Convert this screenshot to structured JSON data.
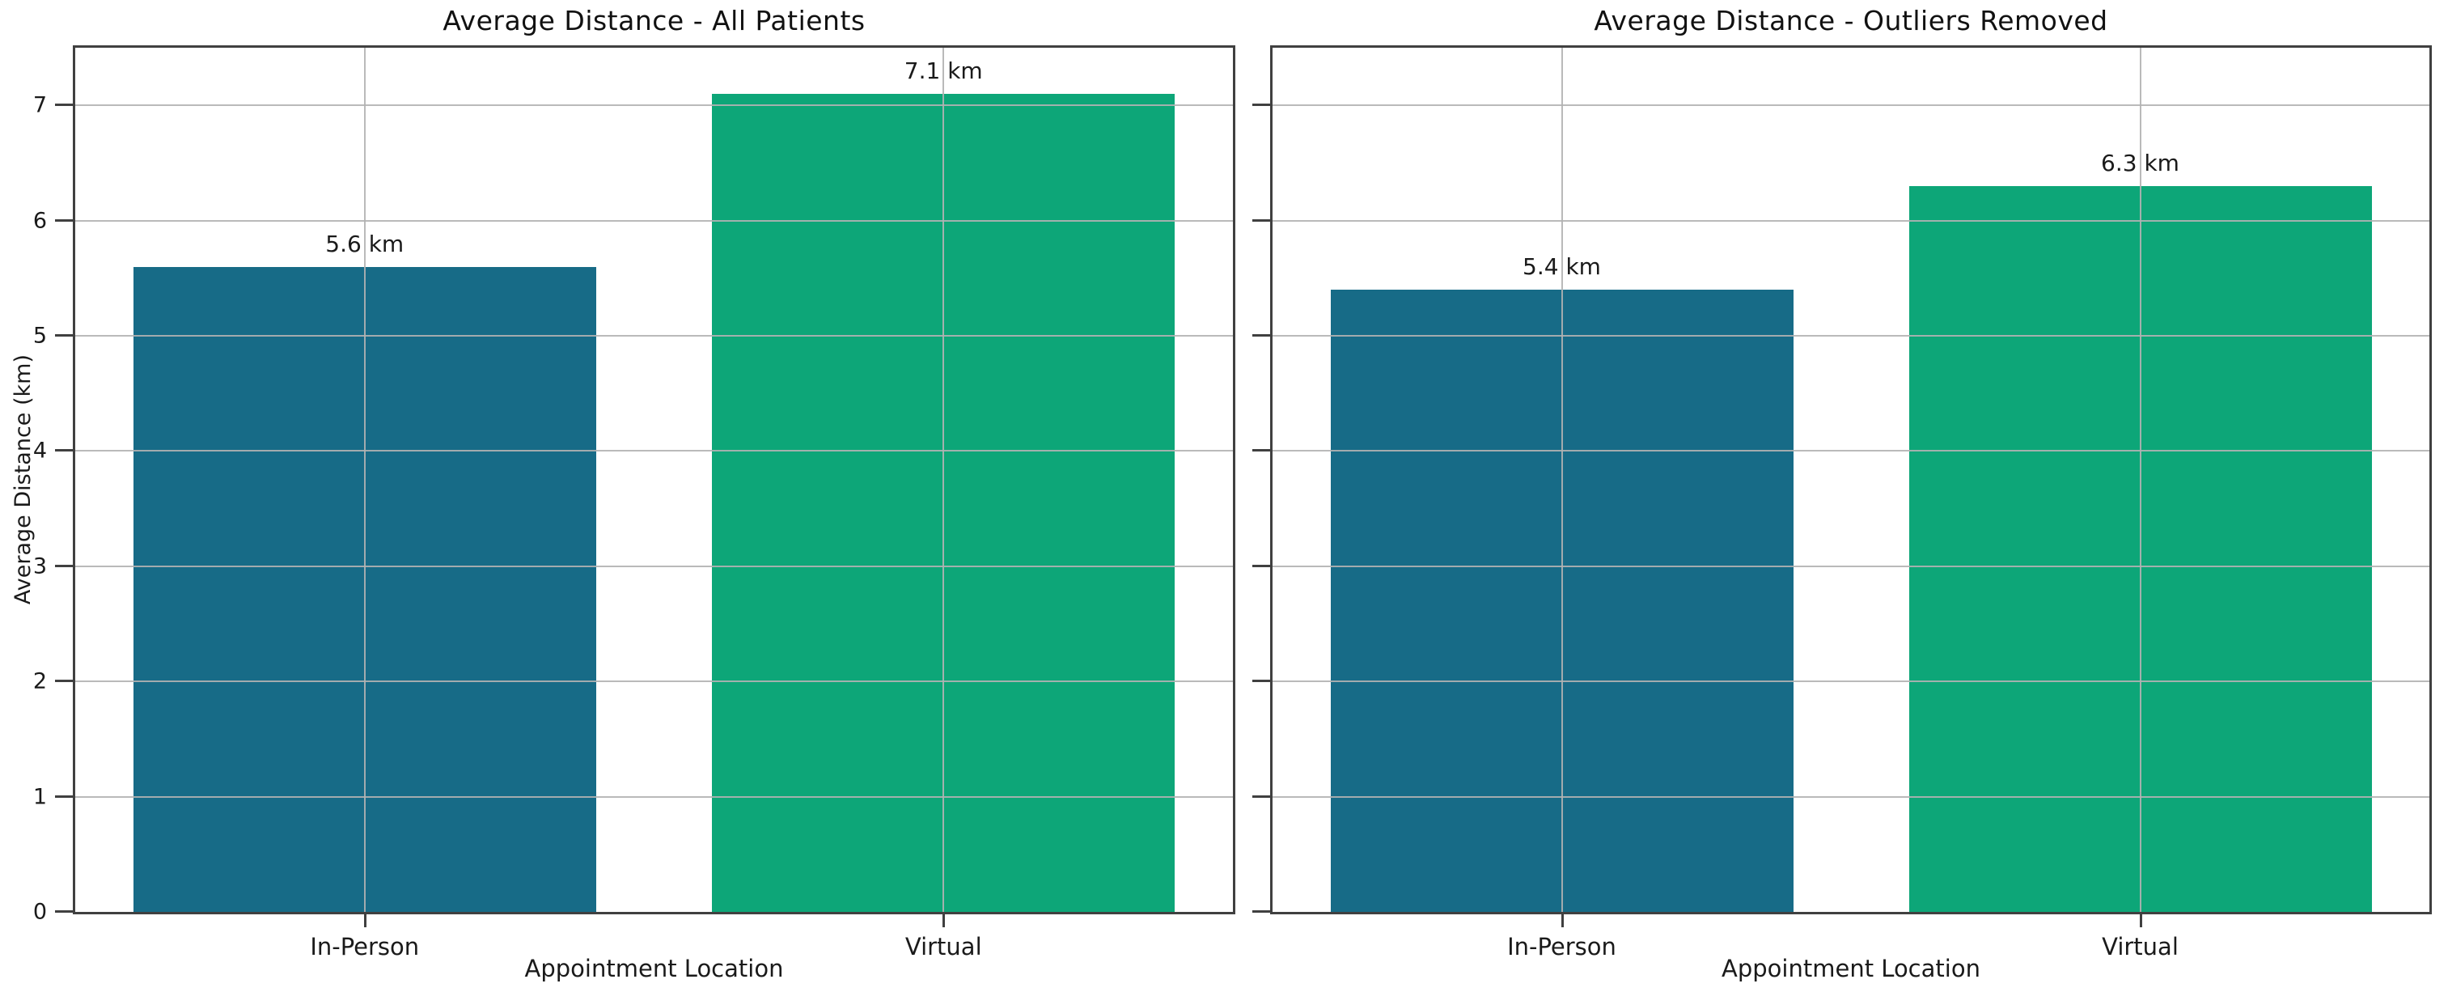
{
  "figure_name": "average-distance-bar-charts",
  "colors": {
    "bar_teal": "#176b87",
    "bar_green": "#0da678",
    "grid": "#b2b2b2",
    "spine": "#404040",
    "text": "#1a1a1a"
  },
  "chart_data": [
    {
      "type": "bar",
      "title": "Average Distance - All Patients",
      "xlabel": "Appointment Location",
      "ylabel": "Average Distance (km)",
      "categories": [
        "In-Person",
        "Virtual"
      ],
      "values": [
        5.6,
        7.1
      ],
      "value_labels": [
        "5.6 km",
        "7.1 km"
      ],
      "bar_colors": [
        "#176b87",
        "#0da678"
      ],
      "ylim": [
        0,
        7.5
      ],
      "yticks": [
        0,
        1,
        2,
        3,
        4,
        5,
        6,
        7
      ],
      "y_tick_labels_visible": true,
      "grid": true,
      "legend": "none"
    },
    {
      "type": "bar",
      "title": "Average Distance - Outliers Removed",
      "xlabel": "Appointment Location",
      "ylabel": "",
      "categories": [
        "In-Person",
        "Virtual"
      ],
      "values": [
        5.4,
        6.3
      ],
      "value_labels": [
        "5.4 km",
        "6.3 km"
      ],
      "bar_colors": [
        "#176b87",
        "#0da678"
      ],
      "ylim": [
        0,
        7.5
      ],
      "yticks": [
        0,
        1,
        2,
        3,
        4,
        5,
        6,
        7
      ],
      "y_tick_labels_visible": false,
      "grid": true,
      "legend": "none"
    }
  ]
}
